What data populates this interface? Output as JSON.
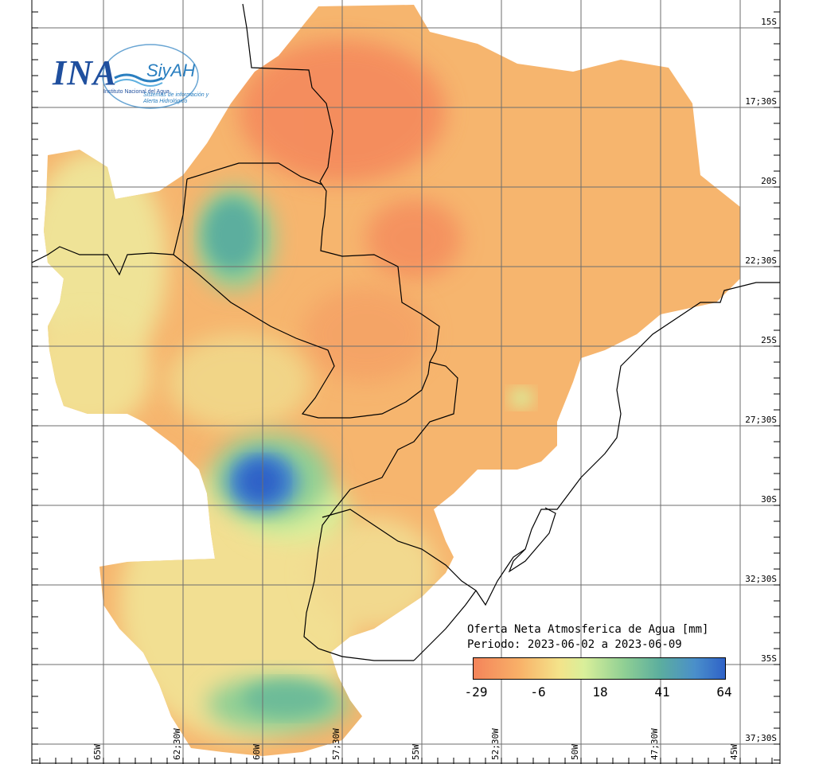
{
  "logo": {
    "ina_text": "INA",
    "siyah_text": "SiyAH",
    "institute_name": "Instituto Nacional del Agua",
    "system_name": "Sistemas de información y Alerta Hidrológico"
  },
  "legend": {
    "title_line1": "Oferta Neta Atmosferica de Agua [mm]",
    "title_line2": "Periodo: 2023-06-02 a 2023-06-09",
    "ticks": [
      "-29",
      "-6",
      "18",
      "41",
      "64"
    ]
  },
  "lat_labels": [
    "15S",
    "17;30S",
    "20S",
    "22;30S",
    "25S",
    "27;30S",
    "30S",
    "32;30S",
    "35S",
    "37;30S"
  ],
  "lon_labels": [
    "65W",
    "62;30W",
    "60W",
    "57;30W",
    "55W",
    "52;30W",
    "50W",
    "47;30W",
    "45W"
  ],
  "colors": {
    "dry": "#f4845a",
    "neutral": "#f4e38a",
    "wet": "#2f62c8",
    "grid": "#6e6e6e",
    "border": "#000000"
  }
}
